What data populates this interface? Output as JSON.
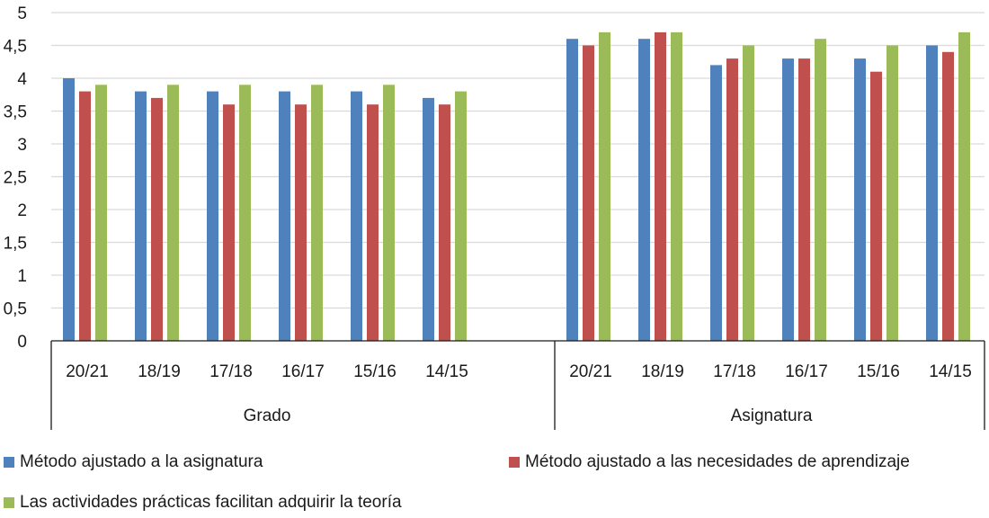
{
  "chart_data": {
    "type": "bar",
    "groups": [
      {
        "name": "Grado",
        "categories": [
          "20/21",
          "18/19",
          "17/18",
          "16/17",
          "15/16",
          "14/15"
        ]
      },
      {
        "name": "Asignatura",
        "categories": [
          "20/21",
          "18/19",
          "17/18",
          "16/17",
          "15/16",
          "14/15"
        ]
      }
    ],
    "series": [
      {
        "name": "Método ajustado a la asignatura",
        "color": "#4f81bd",
        "values": [
          4.0,
          3.8,
          3.8,
          3.8,
          3.8,
          3.7,
          4.6,
          4.6,
          4.2,
          4.3,
          4.3,
          4.5
        ]
      },
      {
        "name": "Método ajustado a las necesidades de aprendizaje",
        "color": "#c0504d",
        "values": [
          3.8,
          3.7,
          3.6,
          3.6,
          3.6,
          3.6,
          4.5,
          4.7,
          4.3,
          4.3,
          4.1,
          4.4
        ]
      },
      {
        "name": "Las actividades prácticas facilitan adquirir la teoría",
        "color": "#9bbb59",
        "values": [
          3.9,
          3.9,
          3.9,
          3.9,
          3.9,
          3.8,
          4.7,
          4.7,
          4.5,
          4.6,
          4.5,
          4.7
        ]
      }
    ],
    "y_ticks": [
      "0",
      "0,5",
      "1",
      "1,5",
      "2",
      "2,5",
      "3",
      "3,5",
      "4",
      "4,5",
      "5"
    ],
    "ylim": [
      0,
      5
    ],
    "grid": true,
    "legend_position": "bottom"
  }
}
